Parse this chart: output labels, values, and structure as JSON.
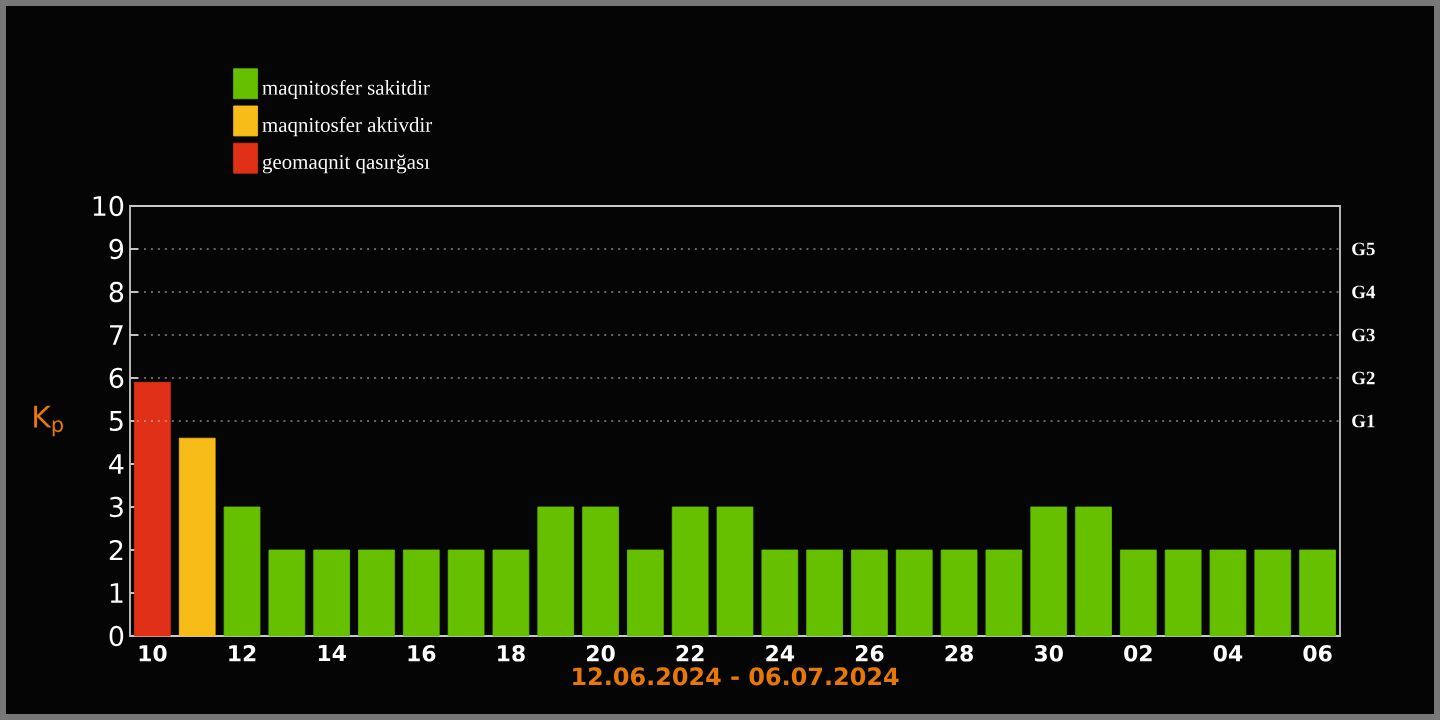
{
  "chart_data": {
    "type": "bar",
    "xlabel": "12.06.2024 - 06.07.2024",
    "ylabel": "K$_{p}$",
    "categories": [
      "10",
      null,
      "12",
      null,
      "14",
      null,
      "16",
      null,
      "18",
      null,
      "20",
      null,
      "22",
      null,
      "24",
      null,
      "26",
      null,
      "28",
      null,
      "30",
      null,
      "02",
      null,
      "04",
      null,
      "06"
    ],
    "series": [
      {
        "name": "maqnitosfer sakitdir",
        "color": "#66c000",
        "values": [
          null,
          null,
          3,
          2,
          2,
          2,
          2,
          2,
          2,
          3,
          3,
          2,
          3,
          3,
          2,
          2,
          2,
          2,
          2,
          2,
          3,
          3,
          2,
          2,
          2,
          2,
          2
        ]
      },
      {
        "name": "maqnitosfer aktivdir",
        "color": "#f8bc18",
        "values": [
          null,
          4.6,
          null,
          null,
          null,
          null,
          null,
          null,
          null,
          null,
          null,
          null,
          null,
          null,
          null,
          null,
          null,
          null,
          null,
          null,
          null,
          null,
          null,
          null,
          null,
          null,
          null
        ]
      },
      {
        "name": "geomaqnit qasırğası",
        "color": "#e03018",
        "values": [
          5.9,
          null,
          null,
          null,
          null,
          null,
          null,
          null,
          null,
          null,
          null,
          null,
          null,
          null,
          null,
          null,
          null,
          null,
          null,
          null,
          null,
          null,
          null,
          null,
          null,
          null,
          null
        ]
      }
    ],
    "ylim": [
      0,
      10
    ],
    "yticks": [
      0,
      1,
      2,
      3,
      4,
      5,
      6,
      7,
      8,
      9,
      10
    ],
    "ref_lines": [
      {
        "axis": "y",
        "value": 5,
        "label": "G1",
        "line_style": "dotted",
        "color": "#c8c8c8"
      },
      {
        "axis": "y",
        "value": 6,
        "label": "G2",
        "line_style": "dotted",
        "color": "#c8c8c8"
      },
      {
        "axis": "y",
        "value": 7,
        "label": "G3",
        "line_style": "dotted",
        "color": "#c8c8c8"
      },
      {
        "axis": "y",
        "value": 8,
        "label": "G4",
        "line_style": "dotted",
        "color": "#c8c8c8"
      },
      {
        "axis": "y",
        "value": 9,
        "label": "G5",
        "line_style": "dotted",
        "color": "#c8c8c8"
      }
    ],
    "legend": "top left"
  }
}
